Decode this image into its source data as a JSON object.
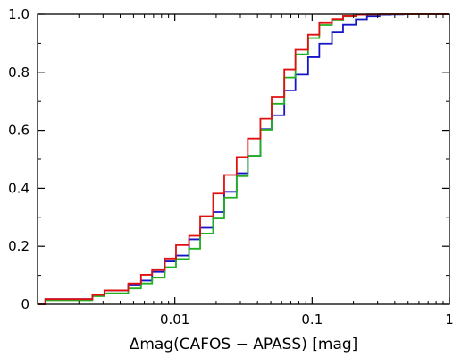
{
  "chart_data": {
    "type": "line",
    "xlabel": "Δmag(CAFOS − APASS) [mag]",
    "ylabel": "",
    "xscale": "log",
    "xlim": [
      0.001,
      1
    ],
    "ylim": [
      0,
      1
    ],
    "x_ticks": [
      {
        "value": 0.01,
        "label": "0.01"
      },
      {
        "value": 0.1,
        "label": "0.1"
      },
      {
        "value": 1,
        "label": "1"
      }
    ],
    "y_ticks": [
      {
        "value": 0,
        "label": "0"
      },
      {
        "value": 0.2,
        "label": "0.2"
      },
      {
        "value": 0.4,
        "label": "0.4"
      },
      {
        "value": 0.6,
        "label": "0.6"
      },
      {
        "value": 0.8,
        "label": "0.8"
      },
      {
        "value": 1.0,
        "label": "1.0"
      }
    ],
    "grid": false,
    "legend": "none",
    "step": "post",
    "series": [
      {
        "color": "#1515c8",
        "x": [
          0.00114,
          0.00251,
          0.00307,
          0.00458,
          0.00567,
          0.00683,
          0.00845,
          0.0102,
          0.0127,
          0.0153,
          0.019,
          0.0229,
          0.0282,
          0.034,
          0.042,
          0.0507,
          0.0627,
          0.0756,
          0.0935,
          0.1128,
          0.1395,
          0.168,
          0.208,
          0.251,
          0.31,
          0.374,
          0.463,
          1.0
        ],
        "y": [
          0.018,
          0.034,
          0.048,
          0.068,
          0.082,
          0.112,
          0.148,
          0.168,
          0.224,
          0.264,
          0.318,
          0.388,
          0.452,
          0.512,
          0.604,
          0.652,
          0.738,
          0.792,
          0.852,
          0.899,
          0.938,
          0.964,
          0.983,
          0.993,
          0.998,
          0.999,
          1.0,
          1.0
        ]
      },
      {
        "color": "#20b020",
        "x": [
          0.00114,
          0.00251,
          0.00307,
          0.00458,
          0.00567,
          0.00683,
          0.00845,
          0.0102,
          0.0127,
          0.0153,
          0.019,
          0.0229,
          0.0282,
          0.034,
          0.042,
          0.0507,
          0.0627,
          0.0756,
          0.0935,
          0.1128,
          0.1395,
          0.168,
          0.208,
          0.251,
          0.31,
          0.374,
          0.463,
          1.0
        ],
        "y": [
          0.014,
          0.028,
          0.038,
          0.055,
          0.072,
          0.092,
          0.128,
          0.156,
          0.192,
          0.244,
          0.296,
          0.368,
          0.442,
          0.512,
          0.602,
          0.692,
          0.782,
          0.862,
          0.918,
          0.963,
          0.978,
          0.993,
          0.998,
          0.999,
          1.0,
          1.0,
          1.0,
          1.0
        ]
      },
      {
        "color": "#e01010",
        "x": [
          0.00114,
          0.00251,
          0.00307,
          0.00458,
          0.00567,
          0.00683,
          0.00845,
          0.0102,
          0.0127,
          0.0153,
          0.019,
          0.0229,
          0.0282,
          0.034,
          0.042,
          0.0507,
          0.0627,
          0.0756,
          0.0935,
          0.1128,
          0.1395,
          0.168,
          0.208,
          0.251,
          0.31,
          0.374,
          0.463,
          1.0
        ],
        "y": [
          0.018,
          0.032,
          0.048,
          0.072,
          0.102,
          0.118,
          0.158,
          0.204,
          0.236,
          0.304,
          0.382,
          0.446,
          0.508,
          0.572,
          0.64,
          0.716,
          0.81,
          0.878,
          0.93,
          0.97,
          0.984,
          0.994,
          0.998,
          0.999,
          1.0,
          1.0,
          1.0,
          1.0
        ]
      }
    ]
  }
}
